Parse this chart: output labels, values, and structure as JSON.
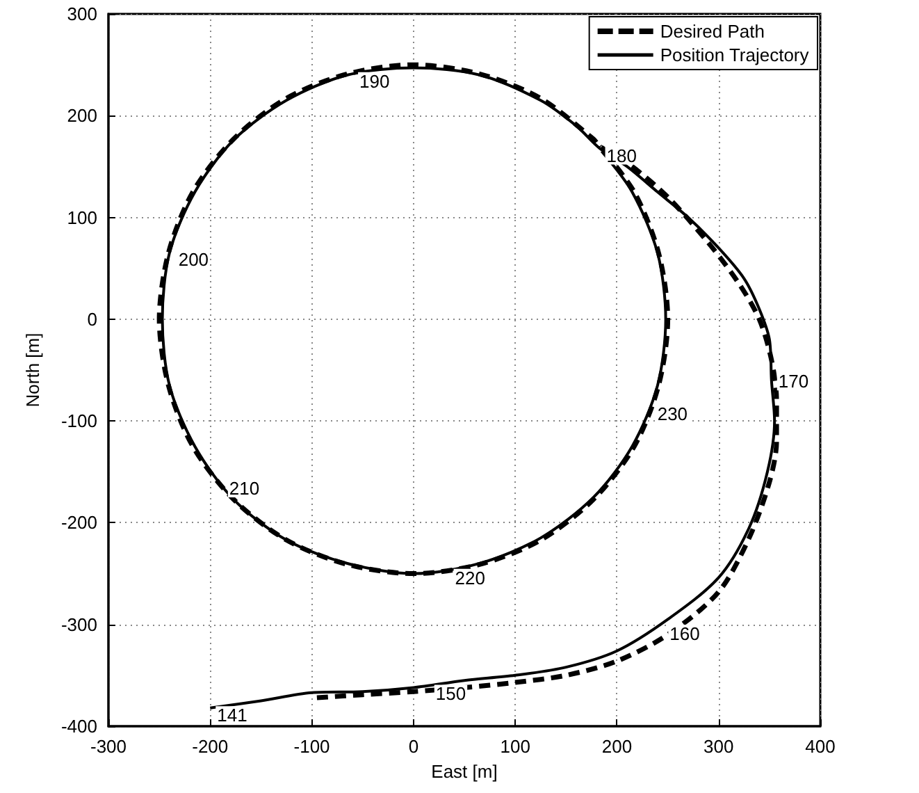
{
  "chart_data": {
    "type": "line",
    "xlabel": "East [m]",
    "ylabel": "North [m]",
    "xlim": [
      -300,
      400
    ],
    "xticks": [
      -300,
      -200,
      -100,
      0,
      100,
      200,
      300,
      400
    ],
    "ylim": [
      -400,
      300
    ],
    "yticks": [
      -400,
      -300,
      -200,
      -100,
      0,
      100,
      200,
      300
    ],
    "grid": true,
    "legend": "top right",
    "marker": "none",
    "series": [
      {
        "name": "Desired Path",
        "color": "#000000",
        "line_style": "dashed",
        "x": [
          -95,
          -50,
          0,
          50,
          100,
          150,
          200,
          250,
          300,
          330,
          350,
          357,
          357,
          352,
          340,
          320,
          290,
          250,
          215,
          183,
          177,
          125,
          65,
          0,
          -65,
          -125,
          -177,
          -217,
          -241,
          -250,
          -241,
          -217,
          -177,
          -125,
          -65,
          0,
          65,
          125,
          177,
          217,
          241,
          250,
          241,
          217,
          183
        ],
        "values": [
          -372,
          -369,
          -366,
          -362,
          -357,
          -350,
          -336,
          -310,
          -268,
          -215,
          -160,
          -120,
          -80,
          -40,
          0,
          35,
          75,
          120,
          150,
          170,
          177,
          217,
          241,
          250,
          241,
          217,
          177,
          125,
          65,
          0,
          -65,
          -125,
          -177,
          -217,
          -241,
          -250,
          -241,
          -217,
          -177,
          -125,
          -65,
          0,
          65,
          125,
          170
        ]
      },
      {
        "name": "Position Trajectory",
        "color": "#000000",
        "line_style": "solid",
        "x": [
          -200,
          -150,
          -100,
          -50,
          0,
          50,
          100,
          150,
          200,
          250,
          300,
          330,
          348,
          355,
          352,
          350,
          340,
          325,
          300,
          270,
          240,
          210,
          183,
          160,
          125,
          65,
          0,
          -65,
          -125,
          -177,
          -215,
          -240,
          -247,
          -240,
          -215,
          -177,
          -125,
          -65,
          0,
          65,
          125,
          177,
          215,
          240,
          248,
          240,
          215,
          185
        ],
        "values": [
          -382,
          -375,
          -367,
          -366,
          -362,
          -355,
          -350,
          -342,
          -326,
          -295,
          -254,
          -205,
          -150,
          -100,
          -60,
          -20,
          10,
          40,
          70,
          100,
          125,
          150,
          168,
          190,
          215,
          240,
          247,
          240,
          215,
          176,
          125,
          65,
          0,
          -65,
          -125,
          -177,
          -217,
          -240,
          -250,
          -240,
          -215,
          -175,
          -125,
          -65,
          0,
          65,
          125,
          165
        ]
      }
    ],
    "annotations": [
      {
        "text": "141",
        "x": -200,
        "y": -383
      },
      {
        "text": "150",
        "x": 15,
        "y": -362
      },
      {
        "text": "160",
        "x": 245,
        "y": -303
      },
      {
        "text": "170",
        "x": 352,
        "y": -55
      },
      {
        "text": "180",
        "x": 183,
        "y": 167
      },
      {
        "text": "190",
        "x": -60,
        "y": 240
      },
      {
        "text": "200",
        "x": -238,
        "y": 65
      },
      {
        "text": "210",
        "x": -188,
        "y": -160
      },
      {
        "text": "220",
        "x": 34,
        "y": -248
      },
      {
        "text": "230",
        "x": 233,
        "y": -87
      }
    ]
  }
}
